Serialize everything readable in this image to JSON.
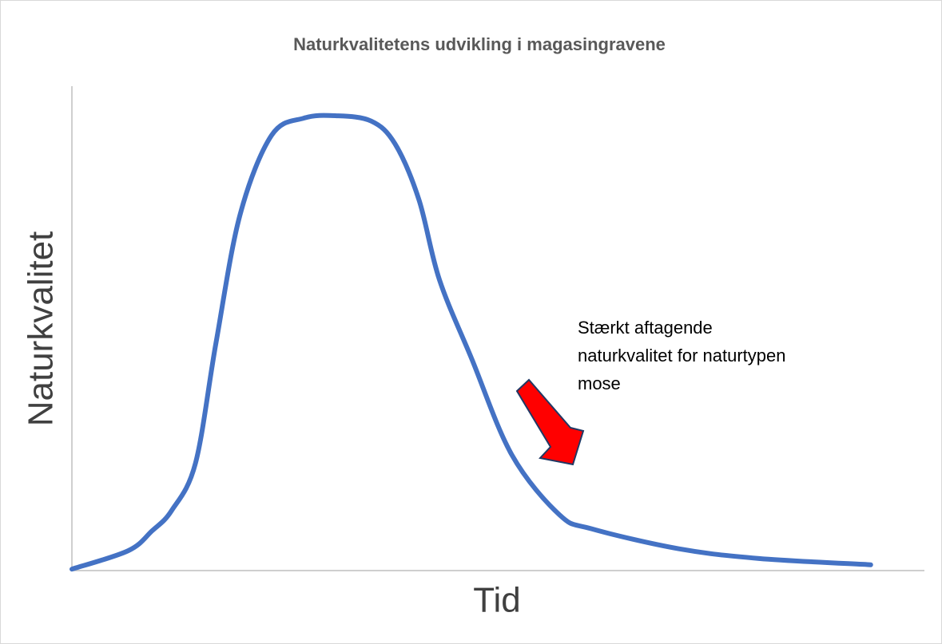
{
  "chart_data": {
    "type": "line",
    "title": "Naturkvalitetens udvikling i magasingravene",
    "xlabel": "Tid",
    "ylabel": "Naturkvalitet",
    "annotation": [
      "Stærkt aftagende",
      "naturkvalitet for naturtypen",
      "mose"
    ],
    "xlim": [
      0,
      100
    ],
    "ylim": [
      0,
      100
    ],
    "x": [
      0,
      6.6,
      9.4,
      11.7,
      14.5,
      16.9,
      19.7,
      23.4,
      27.2,
      30.9,
      35.1,
      37.9,
      40.7,
      43.1,
      46.9,
      51.6,
      57.2,
      61.0,
      71.2,
      80.6,
      93.7
    ],
    "series": [
      {
        "color": "#4472c4",
        "values": [
          0.3,
          4.1,
          8.2,
          12.4,
          22.2,
          47.0,
          73.3,
          89.8,
          93.4,
          93.9,
          92.8,
          88.1,
          76.6,
          60.1,
          43.7,
          23.9,
          11.5,
          8.6,
          4.5,
          2.5,
          1.2
        ]
      }
    ]
  }
}
